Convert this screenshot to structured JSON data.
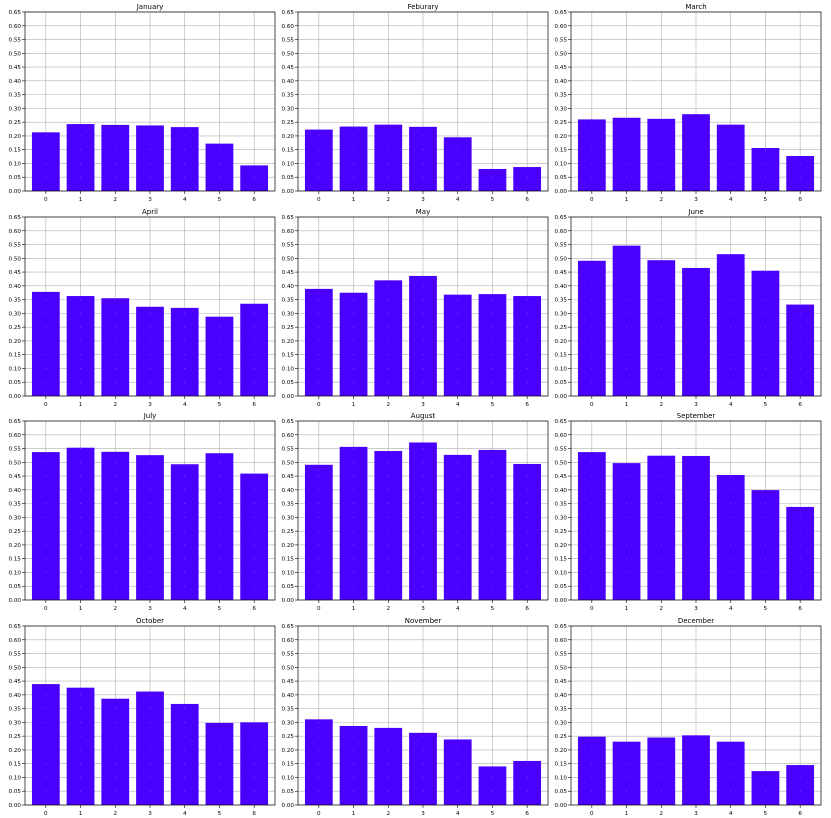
{
  "figure": {
    "bar_color": "#4a00ff",
    "grid_color": "#b0b0b0",
    "background": "#ffffff"
  },
  "chart_data": [
    {
      "type": "bar",
      "title": "January",
      "categories": [
        "0",
        "1",
        "2",
        "3",
        "4",
        "5",
        "6"
      ],
      "values": [
        0.213,
        0.243,
        0.24,
        0.238,
        0.232,
        0.172,
        0.093
      ],
      "ylim": [
        0,
        0.65
      ],
      "yticks": [
        "0.00",
        "0.05",
        "0.10",
        "0.15",
        "0.20",
        "0.25",
        "0.30",
        "0.35",
        "0.40",
        "0.45",
        "0.50",
        "0.55",
        "0.60",
        "0.65"
      ],
      "grid": true
    },
    {
      "type": "bar",
      "title": "Feburary",
      "categories": [
        "0",
        "1",
        "2",
        "3",
        "4",
        "5",
        "6"
      ],
      "values": [
        0.223,
        0.234,
        0.241,
        0.233,
        0.195,
        0.08,
        0.087
      ],
      "ylim": [
        0,
        0.65
      ],
      "yticks": [
        "0.00",
        "0.05",
        "0.10",
        "0.15",
        "0.20",
        "0.25",
        "0.30",
        "0.35",
        "0.40",
        "0.45",
        "0.50",
        "0.55",
        "0.60",
        "0.65"
      ],
      "grid": true
    },
    {
      "type": "bar",
      "title": "March",
      "categories": [
        "0",
        "1",
        "2",
        "3",
        "4",
        "5",
        "6"
      ],
      "values": [
        0.26,
        0.266,
        0.262,
        0.279,
        0.241,
        0.156,
        0.127
      ],
      "ylim": [
        0,
        0.65
      ],
      "yticks": [
        "0.00",
        "0.05",
        "0.10",
        "0.15",
        "0.20",
        "0.25",
        "0.30",
        "0.35",
        "0.40",
        "0.45",
        "0.50",
        "0.55",
        "0.60",
        "0.65"
      ],
      "grid": true
    },
    {
      "type": "bar",
      "title": "April",
      "categories": [
        "0",
        "1",
        "2",
        "3",
        "4",
        "5",
        "6"
      ],
      "values": [
        0.378,
        0.363,
        0.355,
        0.324,
        0.32,
        0.288,
        0.335
      ],
      "ylim": [
        0,
        0.65
      ],
      "yticks": [
        "0.00",
        "0.05",
        "0.10",
        "0.15",
        "0.20",
        "0.25",
        "0.30",
        "0.35",
        "0.40",
        "0.45",
        "0.50",
        "0.55",
        "0.60",
        "0.65"
      ],
      "grid": true
    },
    {
      "type": "bar",
      "title": "May",
      "categories": [
        "0",
        "1",
        "2",
        "3",
        "4",
        "5",
        "6"
      ],
      "values": [
        0.389,
        0.375,
        0.42,
        0.436,
        0.368,
        0.37,
        0.363
      ],
      "ylim": [
        0,
        0.65
      ],
      "yticks": [
        "0.00",
        "0.05",
        "0.10",
        "0.15",
        "0.20",
        "0.25",
        "0.30",
        "0.35",
        "0.40",
        "0.45",
        "0.50",
        "0.55",
        "0.60",
        "0.65"
      ],
      "grid": true
    },
    {
      "type": "bar",
      "title": "June",
      "categories": [
        "0",
        "1",
        "2",
        "3",
        "4",
        "5",
        "6"
      ],
      "values": [
        0.491,
        0.546,
        0.493,
        0.465,
        0.515,
        0.455,
        0.332
      ],
      "ylim": [
        0,
        0.65
      ],
      "yticks": [
        "0.00",
        "0.05",
        "0.10",
        "0.15",
        "0.20",
        "0.25",
        "0.30",
        "0.35",
        "0.40",
        "0.45",
        "0.50",
        "0.55",
        "0.60",
        "0.65"
      ],
      "grid": true
    },
    {
      "type": "bar",
      "title": "July",
      "categories": [
        "0",
        "1",
        "2",
        "3",
        "4",
        "5",
        "6"
      ],
      "values": [
        0.537,
        0.553,
        0.538,
        0.526,
        0.493,
        0.533,
        0.459
      ],
      "ylim": [
        0,
        0.65
      ],
      "yticks": [
        "0.00",
        "0.05",
        "0.10",
        "0.15",
        "0.20",
        "0.25",
        "0.30",
        "0.35",
        "0.40",
        "0.45",
        "0.50",
        "0.55",
        "0.60",
        "0.65"
      ],
      "grid": true
    },
    {
      "type": "bar",
      "title": "August",
      "categories": [
        "0",
        "1",
        "2",
        "3",
        "4",
        "5",
        "6"
      ],
      "values": [
        0.491,
        0.556,
        0.541,
        0.572,
        0.527,
        0.545,
        0.494
      ],
      "ylim": [
        0,
        0.65
      ],
      "yticks": [
        "0.00",
        "0.05",
        "0.10",
        "0.15",
        "0.20",
        "0.25",
        "0.30",
        "0.35",
        "0.40",
        "0.45",
        "0.50",
        "0.55",
        "0.60",
        "0.65"
      ],
      "grid": true
    },
    {
      "type": "bar",
      "title": "September",
      "categories": [
        "0",
        "1",
        "2",
        "3",
        "4",
        "5",
        "6"
      ],
      "values": [
        0.537,
        0.497,
        0.524,
        0.523,
        0.454,
        0.399,
        0.338
      ],
      "ylim": [
        0,
        0.65
      ],
      "yticks": [
        "0.00",
        "0.05",
        "0.10",
        "0.15",
        "0.20",
        "0.25",
        "0.30",
        "0.35",
        "0.40",
        "0.45",
        "0.50",
        "0.55",
        "0.60",
        "0.65"
      ],
      "grid": true
    },
    {
      "type": "bar",
      "title": "October",
      "categories": [
        "0",
        "1",
        "2",
        "3",
        "4",
        "5",
        "6"
      ],
      "values": [
        0.439,
        0.426,
        0.386,
        0.412,
        0.367,
        0.298,
        0.3
      ],
      "ylim": [
        0,
        0.65
      ],
      "yticks": [
        "0.00",
        "0.05",
        "0.10",
        "0.15",
        "0.20",
        "0.25",
        "0.30",
        "0.35",
        "0.40",
        "0.45",
        "0.50",
        "0.55",
        "0.60",
        "0.65"
      ],
      "grid": true
    },
    {
      "type": "bar",
      "title": "November",
      "categories": [
        "0",
        "1",
        "2",
        "3",
        "4",
        "5",
        "6"
      ],
      "values": [
        0.311,
        0.287,
        0.28,
        0.262,
        0.238,
        0.14,
        0.16
      ],
      "ylim": [
        0,
        0.65
      ],
      "yticks": [
        "0.00",
        "0.05",
        "0.10",
        "0.15",
        "0.20",
        "0.25",
        "0.30",
        "0.35",
        "0.40",
        "0.45",
        "0.50",
        "0.55",
        "0.60",
        "0.65"
      ],
      "grid": true
    },
    {
      "type": "bar",
      "title": "December",
      "categories": [
        "0",
        "1",
        "2",
        "3",
        "4",
        "5",
        "6"
      ],
      "values": [
        0.248,
        0.23,
        0.245,
        0.253,
        0.23,
        0.123,
        0.145
      ],
      "ylim": [
        0,
        0.65
      ],
      "yticks": [
        "0.00",
        "0.05",
        "0.10",
        "0.15",
        "0.20",
        "0.25",
        "0.30",
        "0.35",
        "0.40",
        "0.45",
        "0.50",
        "0.55",
        "0.60",
        "0.65"
      ],
      "grid": true
    }
  ]
}
